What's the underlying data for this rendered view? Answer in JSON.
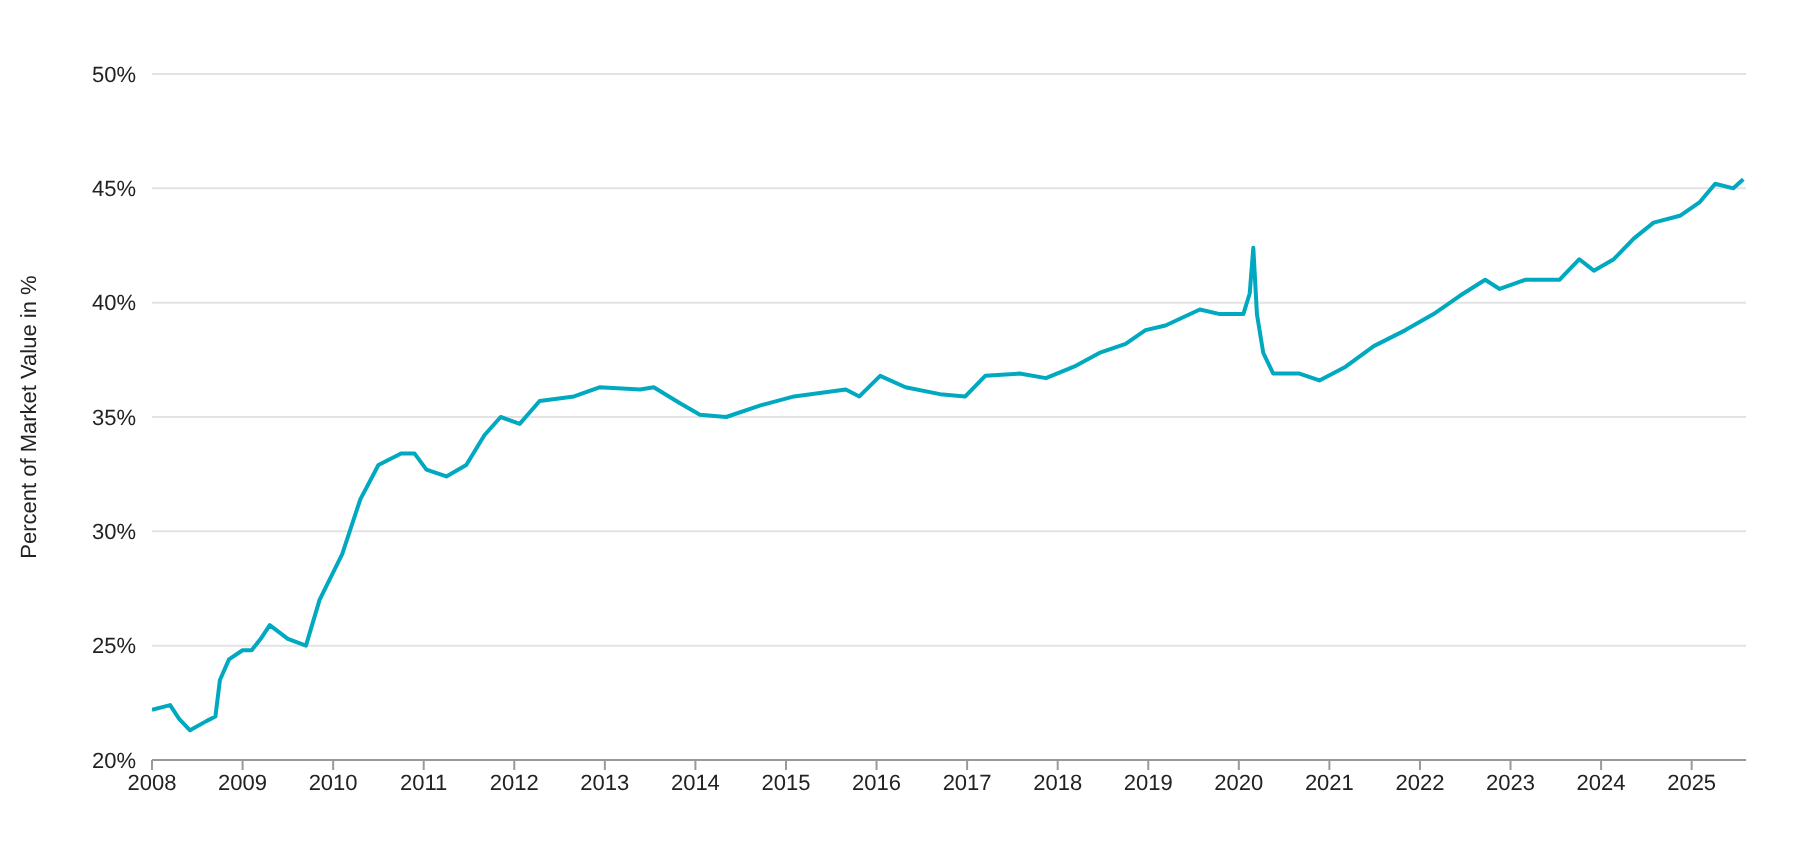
{
  "chart_data": {
    "type": "line",
    "ylabel": "Percent of Market Value in %",
    "xlim": [
      2008,
      2025.6
    ],
    "xticks": [
      2008,
      2009,
      2010,
      2011,
      2012,
      2013,
      2014,
      2015,
      2016,
      2017,
      2018,
      2019,
      2020,
      2021,
      2022,
      2023,
      2024,
      2025
    ],
    "ylim": [
      20,
      50
    ],
    "yticks": [
      {
        "value": 20,
        "label": "20%"
      },
      {
        "value": 25,
        "label": "25%"
      },
      {
        "value": 30,
        "label": "30%"
      },
      {
        "value": 35,
        "label": "35%"
      },
      {
        "value": 40,
        "label": "40%"
      },
      {
        "value": 45,
        "label": "45%"
      },
      {
        "value": 50,
        "label": "50%"
      }
    ],
    "grid": "y",
    "legend": false,
    "marker": "none",
    "line_style": "solid",
    "series": [
      {
        "color": "#00a9c0",
        "x": [
          2008.0,
          2008.2,
          2008.3,
          2008.42,
          2008.6,
          2008.7,
          2008.75,
          2008.85,
          2009.0,
          2009.1,
          2009.2,
          2009.3,
          2009.5,
          2009.7,
          2009.85,
          2010.1,
          2010.3,
          2010.5,
          2010.75,
          2010.9,
          2011.03,
          2011.25,
          2011.47,
          2011.67,
          2011.85,
          2012.06,
          2012.28,
          2012.66,
          2012.94,
          2013.39,
          2013.54,
          2013.83,
          2014.05,
          2014.34,
          2014.71,
          2015.09,
          2015.66,
          2015.81,
          2016.04,
          2016.32,
          2016.7,
          2016.98,
          2017.2,
          2017.58,
          2017.87,
          2018.18,
          2018.46,
          2018.75,
          2018.97,
          2019.19,
          2019.57,
          2019.79,
          2020.05,
          2020.12,
          2020.16,
          2020.2,
          2020.27,
          2020.38,
          2020.67,
          2020.89,
          2021.18,
          2021.49,
          2021.84,
          2022.15,
          2022.44,
          2022.72,
          2022.88,
          2023.16,
          2023.54,
          2023.76,
          2023.92,
          2024.14,
          2024.36,
          2024.58,
          2024.87,
          2025.09,
          2025.26,
          2025.46,
          2025.57
        ],
        "values": [
          22.2,
          22.4,
          21.8,
          21.3,
          21.7,
          21.9,
          23.5,
          24.4,
          24.8,
          24.8,
          25.3,
          25.9,
          25.3,
          25.0,
          27.0,
          29.0,
          31.4,
          32.9,
          33.4,
          33.4,
          32.7,
          32.4,
          32.9,
          34.2,
          35.0,
          34.7,
          35.7,
          35.9,
          36.3,
          36.2,
          36.3,
          35.6,
          35.1,
          35.0,
          35.5,
          35.9,
          36.2,
          35.9,
          36.8,
          36.3,
          36.0,
          35.9,
          36.8,
          36.9,
          36.7,
          37.2,
          37.8,
          38.2,
          38.8,
          39.0,
          39.7,
          39.5,
          39.5,
          40.4,
          42.4,
          39.5,
          37.8,
          36.9,
          36.9,
          36.6,
          37.2,
          38.1,
          38.8,
          39.5,
          40.3,
          41.0,
          40.6,
          41.0,
          41.0,
          41.9,
          41.4,
          41.9,
          42.8,
          43.5,
          43.8,
          44.4,
          45.2,
          45.0,
          45.4
        ]
      }
    ]
  }
}
